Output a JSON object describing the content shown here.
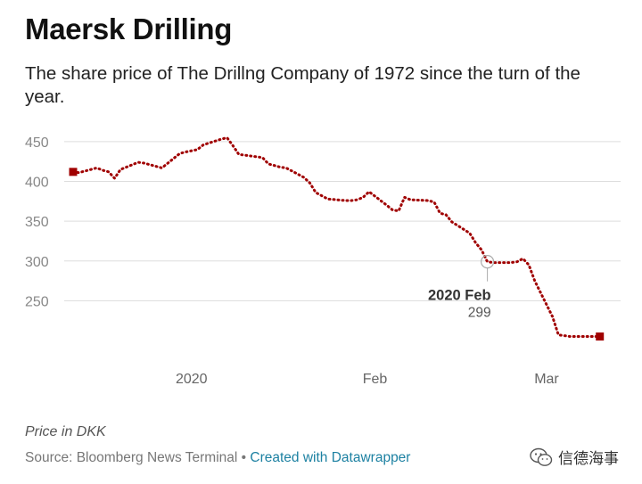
{
  "header": {
    "title": "Maersk Drilling",
    "subtitle": "The share price of The Drillng Company of 1972 since the turn of the year."
  },
  "footer": {
    "note": "Price in DKK",
    "source_prefix": "Source: Bloomberg News Terminal",
    "separator": "•",
    "created_with": "Created with Datawrapper"
  },
  "watermark": {
    "text": "信德海事",
    "icon": "wechat-icon"
  },
  "colors": {
    "line": "#a00000",
    "grid": "#dddddd",
    "axis_text": "#888888",
    "link": "#1d81a2"
  },
  "chart_data": {
    "type": "line",
    "title": "Maersk Drilling",
    "ylabel": "",
    "xlabel": "",
    "ylim": [
      200,
      460
    ],
    "yticks": [
      250,
      300,
      350,
      400,
      450
    ],
    "xlim": [
      "2019-12-12",
      "2020-03-12"
    ],
    "xticks": [
      {
        "date": "2020-01-01",
        "label": "2020"
      },
      {
        "date": "2020-02-01",
        "label": "Feb"
      },
      {
        "date": "2020-03-01",
        "label": "Mar"
      }
    ],
    "grid": true,
    "series": [
      {
        "name": "",
        "x": [
          "2019-12-12",
          "2019-12-13",
          "2019-12-16",
          "2019-12-17",
          "2019-12-18",
          "2019-12-19",
          "2019-12-20",
          "2019-12-23",
          "2019-12-24",
          "2019-12-27",
          "2019-12-30",
          "2019-12-31",
          "2020-01-02",
          "2020-01-03",
          "2020-01-06",
          "2020-01-07",
          "2020-01-08",
          "2020-01-09",
          "2020-01-10",
          "2020-01-13",
          "2020-01-14",
          "2020-01-15",
          "2020-01-16",
          "2020-01-17",
          "2020-01-20",
          "2020-01-21",
          "2020-01-22",
          "2020-01-23",
          "2020-01-24",
          "2020-01-27",
          "2020-01-28",
          "2020-01-29",
          "2020-01-30",
          "2020-01-31",
          "2020-02-03",
          "2020-02-04",
          "2020-02-05",
          "2020-02-06",
          "2020-02-07",
          "2020-02-10",
          "2020-02-11",
          "2020-02-12",
          "2020-02-13",
          "2020-02-14",
          "2020-02-17",
          "2020-02-18",
          "2020-02-19",
          "2020-02-20",
          "2020-02-21",
          "2020-02-24",
          "2020-02-25",
          "2020-02-26",
          "2020-02-27",
          "2020-02-28",
          "2020-03-02",
          "2020-03-03",
          "2020-03-04",
          "2020-03-05",
          "2020-03-06",
          "2020-03-09",
          "2020-03-10"
        ],
        "values": [
          412,
          411,
          417,
          414,
          412,
          404,
          415,
          424,
          423,
          417,
          435,
          437,
          440,
          446,
          453,
          455,
          445,
          434,
          433,
          430,
          422,
          420,
          418,
          417,
          405,
          398,
          386,
          382,
          378,
          376,
          376,
          377,
          380,
          387,
          370,
          364,
          363,
          380,
          377,
          376,
          374,
          360,
          358,
          349,
          335,
          323,
          314,
          299,
          298,
          298,
          299,
          303,
          295,
          275,
          230,
          207,
          206,
          205,
          205,
          205,
          205
        ]
      }
    ],
    "annotations": [
      {
        "date": "2020-02-20",
        "value": 299,
        "title": "2020 Feb",
        "label": "299"
      }
    ],
    "endpoints": [
      {
        "date": "2019-12-12",
        "value": 412
      },
      {
        "date": "2020-03-10",
        "value": 205
      }
    ]
  }
}
